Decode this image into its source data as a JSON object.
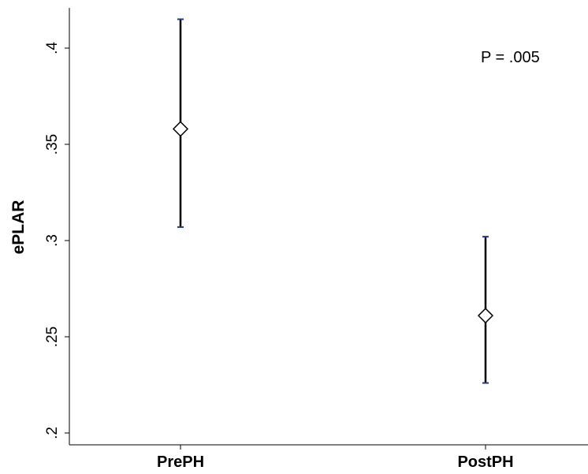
{
  "chart_data": {
    "type": "scatter",
    "subtype": "point-with-error-bars",
    "categories": [
      "PrePH",
      "PostPH"
    ],
    "series": [
      {
        "points": [
          {
            "category": "PrePH",
            "value": 0.358,
            "lower": 0.307,
            "upper": 0.415
          },
          {
            "category": "PostPH",
            "value": 0.261,
            "lower": 0.226,
            "upper": 0.302
          }
        ]
      }
    ],
    "ylabel": "ePLAR",
    "xlabel": "",
    "ylim": [
      0.2,
      0.42
    ],
    "yticks": [
      0.2,
      0.25,
      0.3,
      0.35,
      0.4
    ],
    "ytick_labels": [
      ".2",
      ".25",
      ".3",
      ".35",
      ".4"
    ],
    "annotation": "P = .005",
    "marker": "hollow-diamond",
    "grid": false,
    "line_color": "#000000",
    "cap_color": "#1f3a8a"
  }
}
